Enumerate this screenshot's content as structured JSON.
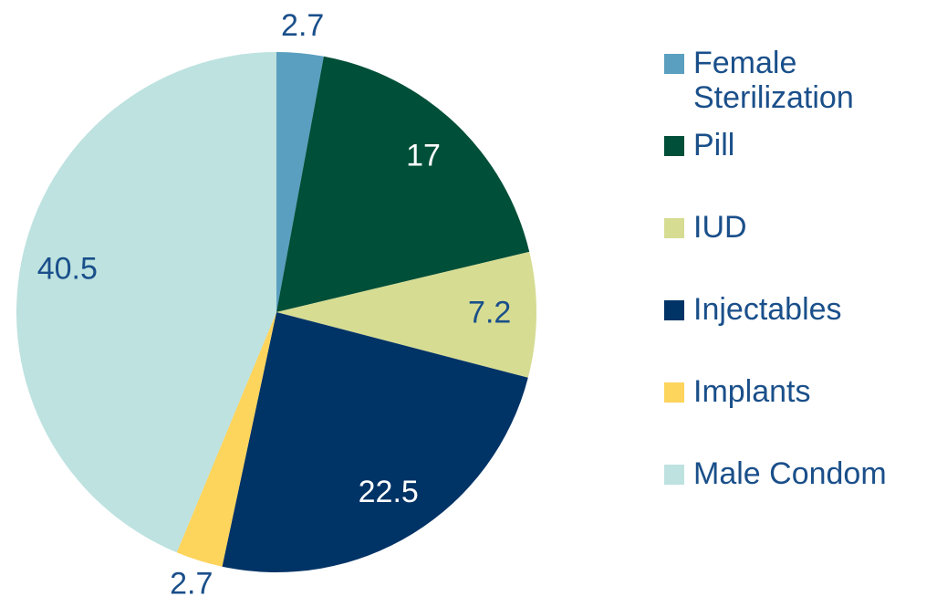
{
  "chart_data": {
    "type": "pie",
    "categories": [
      "Female Sterilization",
      "Pill",
      "IUD",
      "Injectables",
      "Implants",
      "Male Condom"
    ],
    "values": [
      2.7,
      17,
      7.2,
      22.5,
      2.7,
      40.5
    ],
    "colors": [
      "#5a9fc0",
      "#004f38",
      "#d6dc92",
      "#003366",
      "#fdd45c",
      "#bde2e0"
    ],
    "legend": "right"
  }
}
